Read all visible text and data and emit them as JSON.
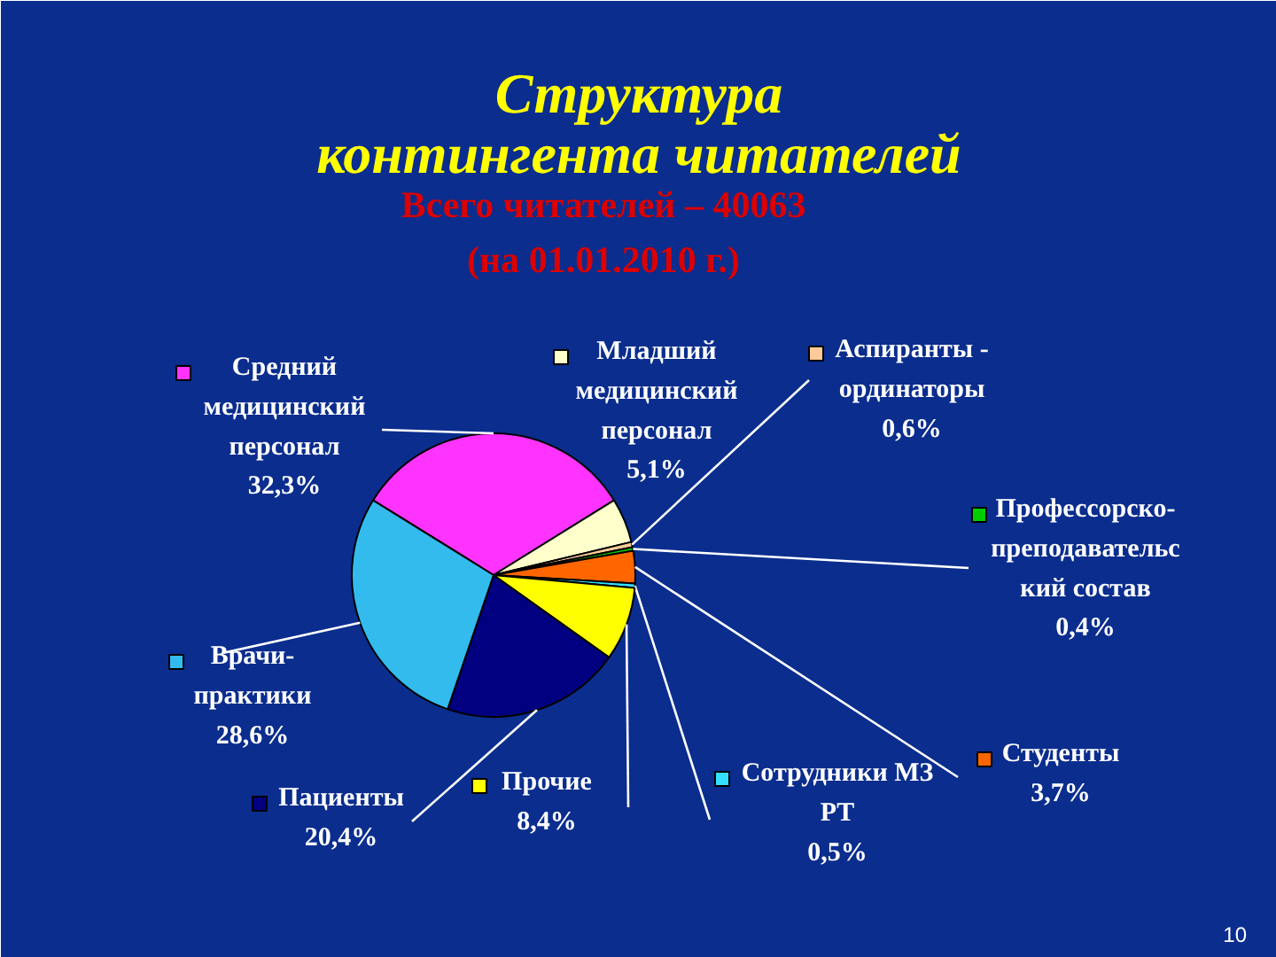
{
  "chart_data": {
    "type": "pie",
    "title": "Структура\nконтингента читателей",
    "subtitle": "Всего читателей – 40063\n(на 01.01.2010 г.)",
    "categories": [
      "Средний\nмедицинский\nперсонал",
      "Младший\nмедицинский\nперсонал",
      "Аспиранты -\nординаторы",
      "Профессорско-\nпреподавательс\nкий состав",
      "Студенты",
      "Сотрудники МЗ\nРТ",
      "Прочие",
      "Пациенты",
      "Врачи-\nпрактики"
    ],
    "values": [
      32.3,
      5.1,
      0.6,
      0.4,
      3.7,
      0.5,
      8.4,
      20.4,
      28.6
    ],
    "colors": [
      "#ff33ff",
      "#ffffcc",
      "#ffcc99",
      "#00cc00",
      "#ff6600",
      "#33e0ff",
      "#ffff00",
      "#000080",
      "#33bbee"
    ],
    "value_labels": [
      "32,3%",
      "5,1%",
      "0,6%",
      "0,4%",
      "3,7%",
      "0,5%",
      "8,4%",
      "20,4%",
      "28,6%"
    ],
    "legend": "right",
    "annotations": [
      "10"
    ]
  }
}
